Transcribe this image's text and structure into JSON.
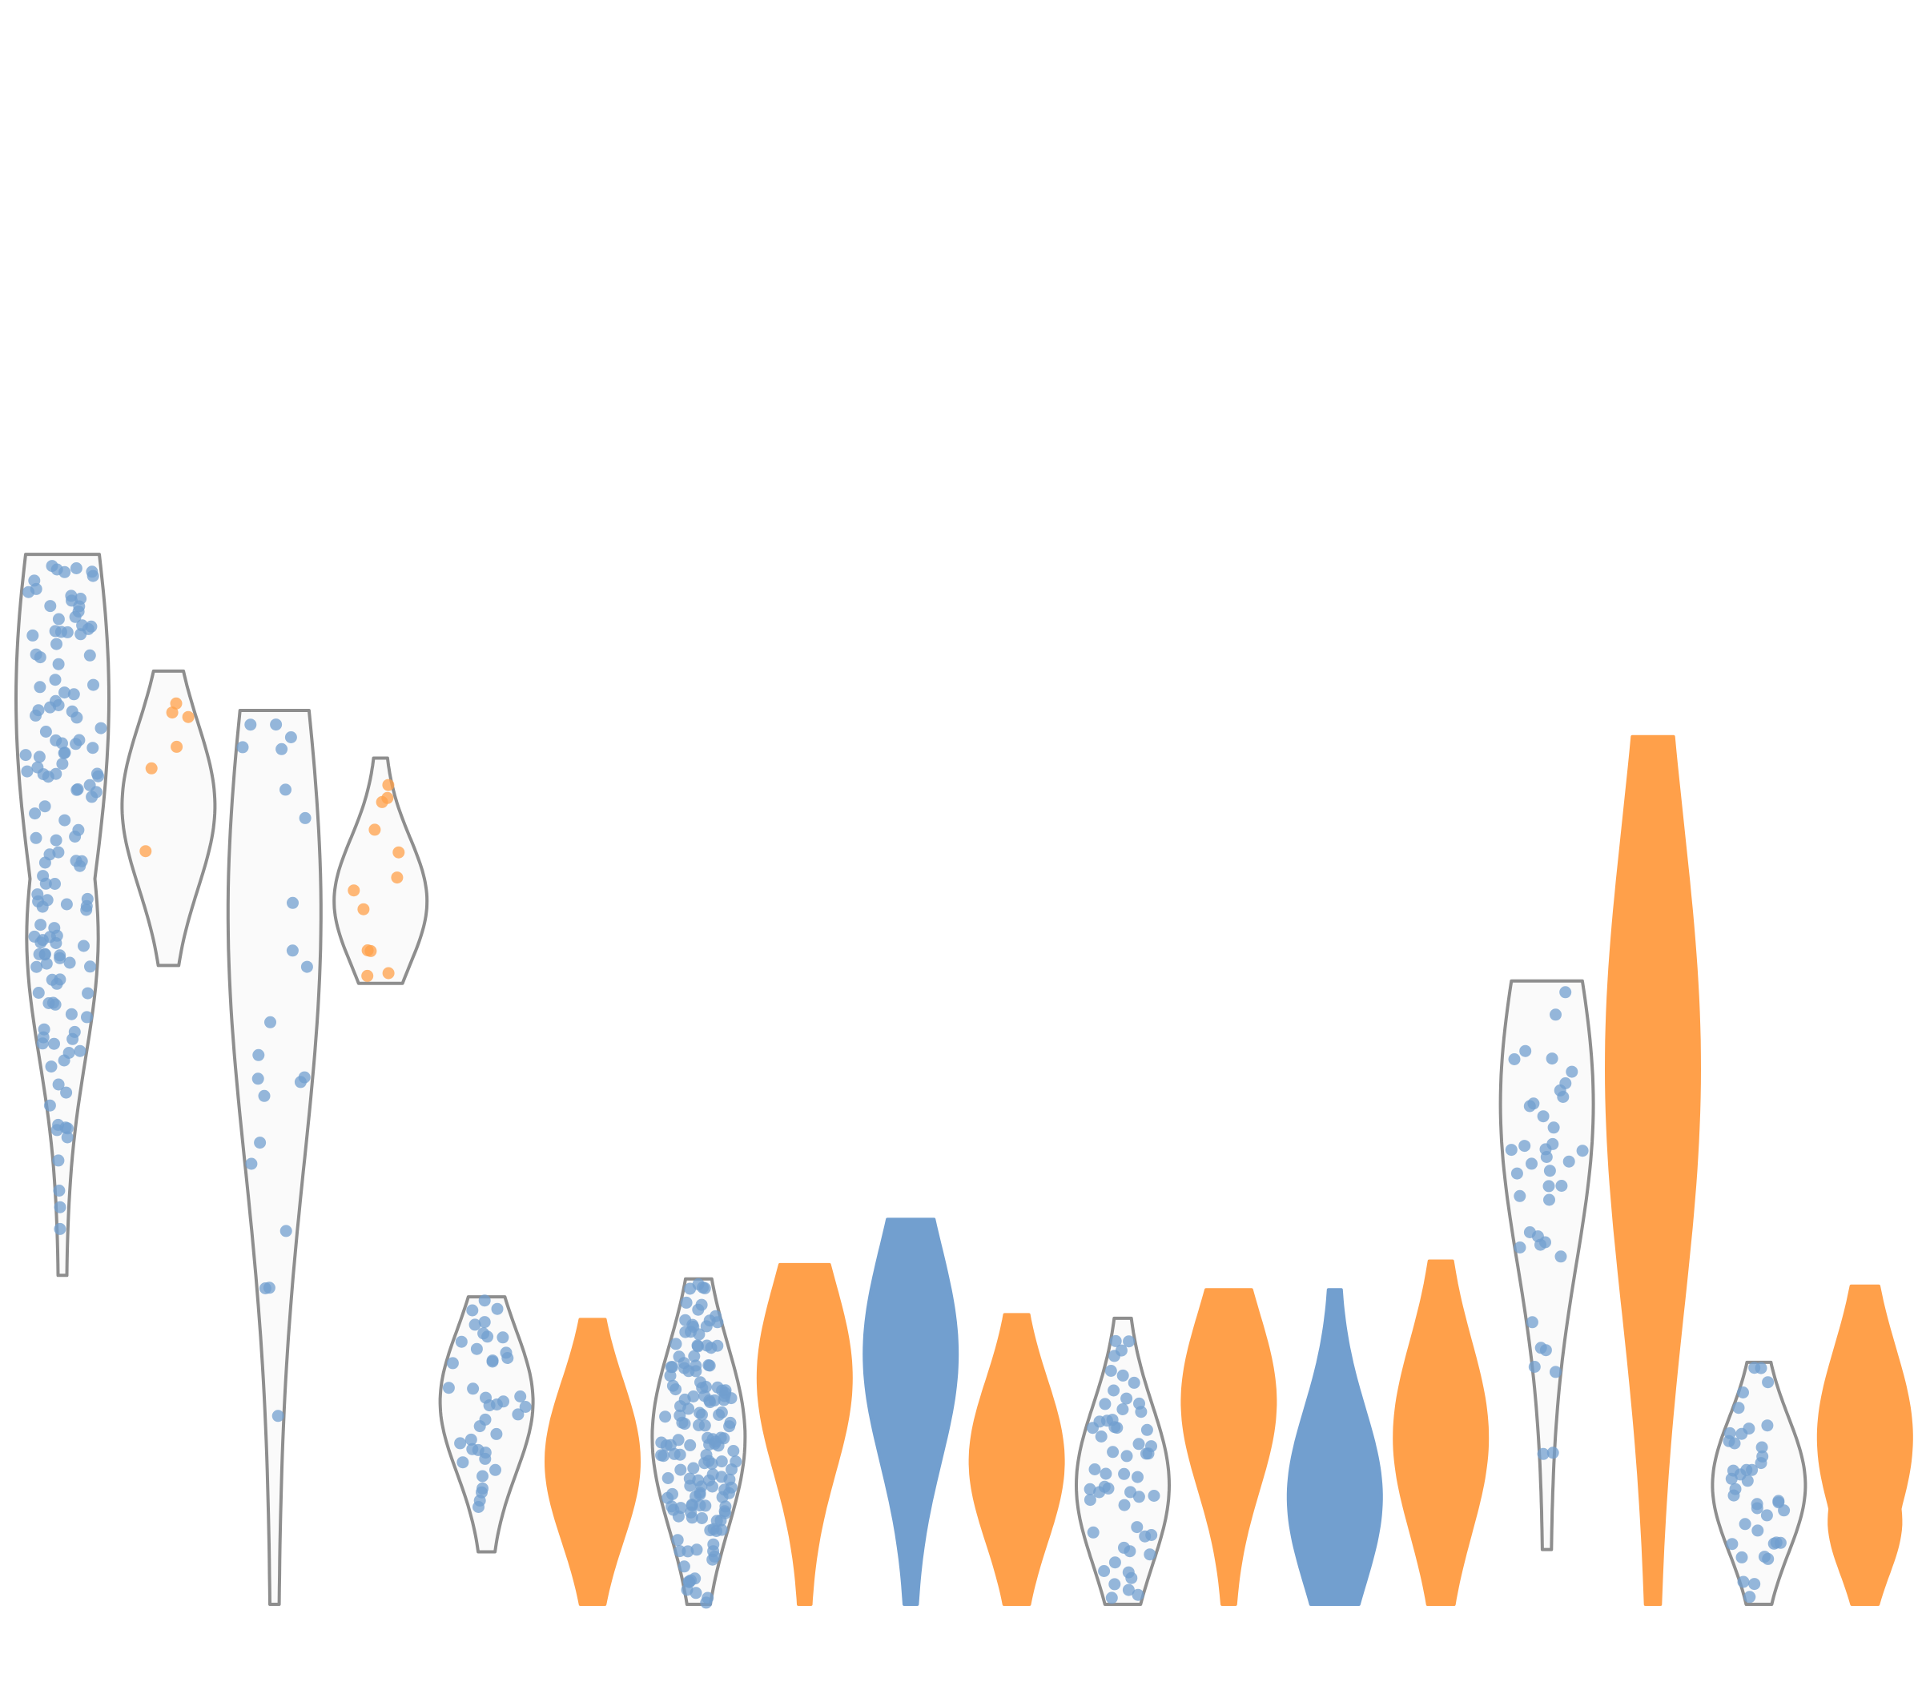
{
  "chart_data": {
    "type": "violin",
    "title": "",
    "xlabel": "",
    "ylabel": "",
    "ylim": [
      0,
      100
    ],
    "grid": false,
    "legend": "none",
    "colors": {
      "blue": "#729fcf",
      "orange": "#ffa04a",
      "outline": "#8e8e8e",
      "violin_fill": "#fafafa"
    },
    "series": [
      {
        "color": "blue",
        "fill": "outline",
        "n": 140,
        "min": 27.6,
        "max": 88.1,
        "peak": 76.0,
        "peak2": 56.0
      },
      {
        "color": "orange",
        "fill": "outline",
        "n": 6,
        "min": 53.6,
        "max": 78.3,
        "peak": 67.0,
        "peak2": 0
      },
      {
        "color": "blue",
        "fill": "outline",
        "n": 22,
        "min": 0.0,
        "max": 75.0,
        "peak": 58.0,
        "peak2": 0
      },
      {
        "color": "orange",
        "fill": "outline",
        "n": 12,
        "min": 52.1,
        "max": 71.0,
        "peak": 59.0,
        "peak2": 0
      },
      {
        "color": "blue",
        "fill": "outline",
        "n": 40,
        "min": 4.4,
        "max": 25.8,
        "peak": 17.0,
        "peak2": 0
      },
      {
        "color": "orange",
        "fill": "solid",
        "n": 900,
        "min": 0.0,
        "max": 23.9,
        "peak": 12.0,
        "peak2": 0
      },
      {
        "color": "blue",
        "fill": "outline",
        "n": 150,
        "min": 0.0,
        "max": 27.3,
        "peak": 14.0,
        "peak2": 0
      },
      {
        "color": "orange",
        "fill": "solid",
        "n": 700,
        "min": 0.0,
        "max": 28.5,
        "peak": 19.0,
        "peak2": 0
      },
      {
        "color": "blue",
        "fill": "solid",
        "n": 500,
        "min": 0.0,
        "max": 32.3,
        "peak": 21.0,
        "peak2": 0
      },
      {
        "color": "orange",
        "fill": "solid",
        "n": 800,
        "min": 0.0,
        "max": 24.3,
        "peak": 12.0,
        "peak2": 0
      },
      {
        "color": "blue",
        "fill": "outline",
        "n": 55,
        "min": 0.0,
        "max": 24.0,
        "peak": 10.0,
        "peak2": 0
      },
      {
        "color": "orange",
        "fill": "solid",
        "n": 600,
        "min": 0.0,
        "max": 26.4,
        "peak": 17.0,
        "peak2": 0
      },
      {
        "color": "blue",
        "fill": "solid",
        "n": 2000,
        "min": 0.0,
        "max": 26.4,
        "peak": 9.0,
        "peak2": 0
      },
      {
        "color": "orange",
        "fill": "solid",
        "n": 1000,
        "min": 0.0,
        "max": 28.8,
        "peak": 14.0,
        "peak2": 0
      },
      {
        "color": "blue",
        "fill": "outline",
        "n": 40,
        "min": 4.6,
        "max": 52.3,
        "peak": 42.0,
        "peak2": 0
      },
      {
        "color": "orange",
        "fill": "solid",
        "n": 2500,
        "min": 0.0,
        "max": 72.8,
        "peak": 45.0,
        "peak2": 0
      },
      {
        "color": "blue",
        "fill": "outline",
        "n": 40,
        "min": 0.0,
        "max": 20.3,
        "peak": 10.0,
        "peak2": 0
      },
      {
        "color": "orange",
        "fill": "solid",
        "n": 800,
        "min": 0.0,
        "max": 26.7,
        "peak": 14.0,
        "peak2": 7.0
      }
    ]
  }
}
